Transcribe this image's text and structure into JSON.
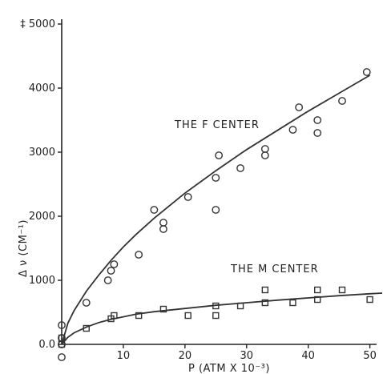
{
  "chart_data": {
    "type": "scatter",
    "title": "",
    "xlabel": "P (ATM X 10⁻³)",
    "ylabel": "Δ ν (CM⁻¹)",
    "xlim": [
      0,
      52
    ],
    "ylim": [
      0,
      5000
    ],
    "x_ticks": [
      10,
      20,
      30,
      40,
      50
    ],
    "y_ticks": [
      {
        "value": 0,
        "label": "0.0"
      },
      {
        "value": 1000,
        "label": "1000"
      },
      {
        "value": 2000,
        "label": "2000"
      },
      {
        "value": 3000,
        "label": "3000"
      },
      {
        "value": 4000,
        "label": "4000"
      },
      {
        "value": 5000,
        "label": "‡ 5000"
      }
    ],
    "annotations": [
      "THE F CENTER",
      "THE M CENTER"
    ],
    "grid": false,
    "series": [
      {
        "marker": "circle",
        "points": [
          [
            0,
            300
          ],
          [
            0,
            100
          ],
          [
            0,
            0
          ],
          [
            0,
            -200
          ],
          [
            4,
            650
          ],
          [
            7.5,
            1000
          ],
          [
            8,
            1150
          ],
          [
            8.5,
            1250
          ],
          [
            12.5,
            1400
          ],
          [
            15,
            2100
          ],
          [
            16.5,
            1800
          ],
          [
            16.5,
            1900
          ],
          [
            20.5,
            2300
          ],
          [
            25,
            2100
          ],
          [
            25,
            2600
          ],
          [
            25.5,
            2950
          ],
          [
            29,
            2750
          ],
          [
            33,
            2950
          ],
          [
            33,
            3050
          ],
          [
            37.5,
            3350
          ],
          [
            38.5,
            3700
          ],
          [
            41.5,
            3300
          ],
          [
            41.5,
            3500
          ],
          [
            45.5,
            3800
          ],
          [
            49.5,
            4250
          ]
        ],
        "fit_curve": [
          [
            0,
            0
          ],
          [
            1,
            330
          ],
          [
            2,
            525
          ],
          [
            4,
            830
          ],
          [
            6,
            1080
          ],
          [
            8,
            1310
          ],
          [
            10,
            1520
          ],
          [
            12,
            1710
          ],
          [
            15,
            1970
          ],
          [
            20,
            2360
          ],
          [
            25,
            2710
          ],
          [
            30,
            3040
          ],
          [
            35,
            3340
          ],
          [
            40,
            3640
          ],
          [
            45,
            3920
          ],
          [
            50,
            4200
          ]
        ]
      },
      {
        "marker": "square",
        "points": [
          [
            0,
            0
          ],
          [
            0,
            100
          ],
          [
            4,
            250
          ],
          [
            8,
            400
          ],
          [
            8.5,
            450
          ],
          [
            12.5,
            450
          ],
          [
            16.5,
            550
          ],
          [
            20.5,
            450
          ],
          [
            25,
            450
          ],
          [
            25,
            600
          ],
          [
            29,
            600
          ],
          [
            33,
            650
          ],
          [
            33,
            850
          ],
          [
            37.5,
            650
          ],
          [
            41.5,
            700
          ],
          [
            41.5,
            850
          ],
          [
            45.5,
            850
          ],
          [
            50,
            700
          ]
        ],
        "fit_curve": [
          [
            0,
            0
          ],
          [
            1,
            110
          ],
          [
            2,
            180
          ],
          [
            4,
            270
          ],
          [
            6,
            340
          ],
          [
            8,
            390
          ],
          [
            10,
            430
          ],
          [
            12,
            470
          ],
          [
            15,
            510
          ],
          [
            20,
            560
          ],
          [
            25,
            610
          ],
          [
            30,
            650
          ],
          [
            35,
            690
          ],
          [
            40,
            725
          ],
          [
            45,
            760
          ],
          [
            50,
            790
          ],
          [
            52,
            800
          ]
        ]
      }
    ]
  }
}
